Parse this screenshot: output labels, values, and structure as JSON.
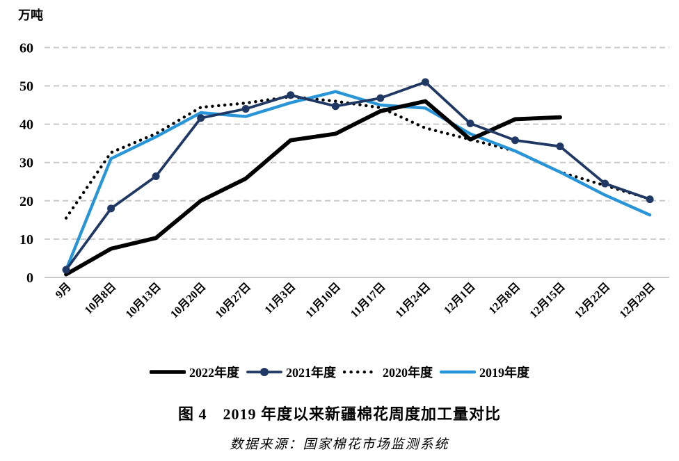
{
  "caption": "图 4　2019 年度以来新疆棉花周度加工量对比",
  "source": "数据来源：国家棉花市场监测系统",
  "colors": {
    "black_series": "#000000",
    "navy_series": "#1f3864",
    "lightblue_series": "#2795d8",
    "gridline": "#c9c9c9",
    "axis": "#b7b7b7"
  },
  "chart_data": {
    "type": "line",
    "title": "图 4　2019 年度以来新疆棉花周度加工量对比",
    "ylabel": "万吨",
    "xlabel": "",
    "ylim": [
      0,
      60
    ],
    "y_ticks": [
      0,
      10,
      20,
      30,
      40,
      50,
      60
    ],
    "grid": true,
    "legend_position": "bottom",
    "categories": [
      "9月",
      "10月8日",
      "10月13日",
      "10月20日",
      "10月27日",
      "11月3日",
      "11月10日",
      "11月17日",
      "11月24日",
      "12月1日",
      "12月8日",
      "12月15日",
      "12月22日",
      "12月29日"
    ],
    "series": [
      {
        "name": "2022年度",
        "color": "#000000",
        "style": "solid",
        "width": 5.8,
        "marker": false,
        "values": [
          0.8,
          7.5,
          10.3,
          20,
          25.8,
          35.8,
          37.5,
          43.4,
          46,
          36,
          41.3,
          41.8,
          null,
          null
        ]
      },
      {
        "name": "2021年度",
        "color": "#1f3864",
        "style": "solid",
        "width": 3.8,
        "marker": true,
        "values": [
          2,
          18,
          26.4,
          41.6,
          44,
          47.6,
          44.7,
          46.8,
          51,
          40.2,
          35.8,
          34.2,
          24.5,
          20.4
        ]
      },
      {
        "name": "2020年度",
        "color": "#000000",
        "style": "dotted",
        "width": 4.4,
        "marker": false,
        "values": [
          15.5,
          32.6,
          37.5,
          44.4,
          45.5,
          47.2,
          46,
          44.3,
          39,
          36,
          33,
          27.5,
          24,
          20.5
        ]
      },
      {
        "name": "2019年度",
        "color": "#2795d8",
        "style": "solid",
        "width": 4.4,
        "marker": false,
        "values": [
          2,
          31,
          36.7,
          43,
          42,
          45.6,
          48.5,
          45,
          44.2,
          37.5,
          33,
          27.5,
          21.5,
          16.3
        ]
      }
    ]
  }
}
